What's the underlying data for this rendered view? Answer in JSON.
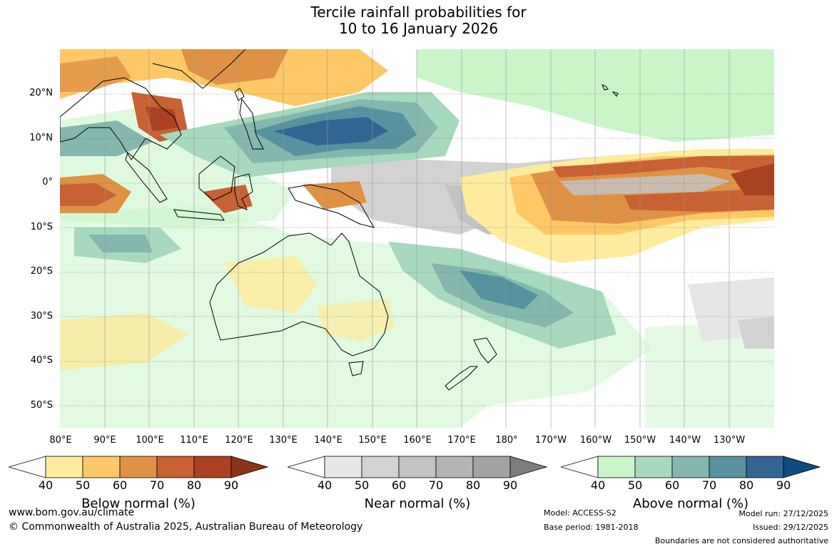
{
  "title": [
    "Tercile rainfall probabilities for",
    "10 to 16 January 2026"
  ],
  "map": {
    "lat_labels": [
      "20°N",
      "10°N",
      "0°",
      "10°S",
      "20°S",
      "30°S",
      "40°S",
      "50°S"
    ],
    "lon_labels": [
      "80°E",
      "90°E",
      "100°E",
      "110°E",
      "120°E",
      "130°E",
      "140°E",
      "150°E",
      "160°E",
      "170°E",
      "180°",
      "170°W",
      "160°W",
      "150°W",
      "140°W",
      "130°W"
    ]
  },
  "legends": {
    "below": {
      "title": "Below normal (%)",
      "ticks": [
        "40",
        "50",
        "60",
        "70",
        "80",
        "90"
      ],
      "colors": [
        "#ffffff",
        "#feeb9e",
        "#fdc865",
        "#df9245",
        "#c86133",
        "#ab4122",
        "#8c3418"
      ]
    },
    "near": {
      "title": "Near normal (%)",
      "ticks": [
        "40",
        "50",
        "60",
        "70",
        "80",
        "90"
      ],
      "colors": [
        "#ffffff",
        "#e6e6e6",
        "#d2d2d2",
        "#c3c3c3",
        "#b4b4b4",
        "#a3a3a3",
        "#7d7d7d"
      ]
    },
    "above": {
      "title": "Above normal (%)",
      "ticks": [
        "40",
        "50",
        "60",
        "70",
        "80",
        "90"
      ],
      "colors": [
        "#ffffff",
        "#c9f5c9",
        "#a6d9be",
        "#84b8ae",
        "#5891a0",
        "#336592",
        "#0f4a80"
      ]
    }
  },
  "footer": {
    "website": "www.bom.gov.au/climate",
    "copyright": "© Commonwealth of Australia 2025, Australian Bureau of Meteorology",
    "model": "Model: ACCESS-S2",
    "base_period": "Base period: 1981-2018",
    "model_run": "Model run: 27/12/2025",
    "issued": "Issued: 29/12/2025",
    "disclaimer": "Boundaries are not considered authoritative"
  }
}
